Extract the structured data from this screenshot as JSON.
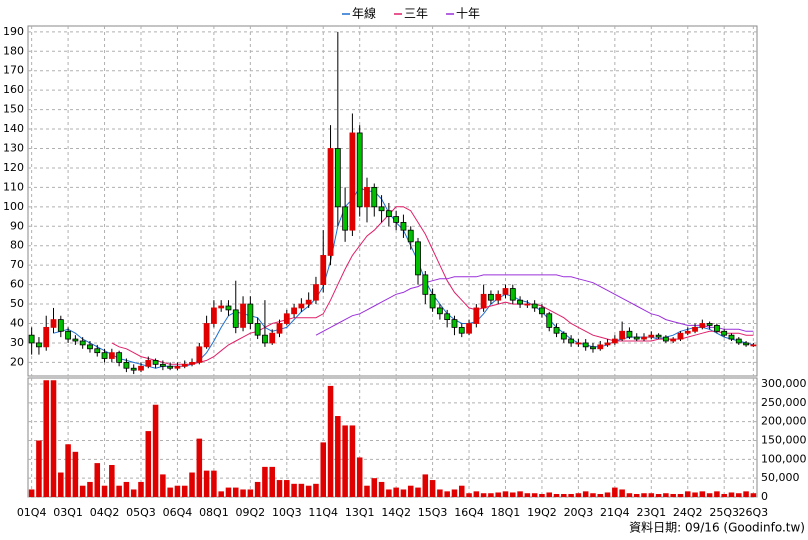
{
  "chart_data": {
    "type": "candlestick",
    "up_color": "#e00000",
    "down_color": "#00c000",
    "grid": true,
    "ylim": [
      13,
      193
    ],
    "yticks": [
      20,
      30,
      40,
      50,
      60,
      70,
      80,
      90,
      100,
      110,
      120,
      130,
      140,
      150,
      160,
      170,
      180,
      190
    ],
    "categories": [
      "01Q4",
      null,
      null,
      null,
      null,
      "03Q1",
      null,
      null,
      null,
      null,
      "04Q2",
      null,
      null,
      null,
      null,
      "05Q3",
      null,
      null,
      null,
      null,
      "06Q4",
      null,
      null,
      null,
      null,
      "08Q1",
      null,
      null,
      null,
      null,
      "09Q2",
      null,
      null,
      null,
      null,
      "10Q3",
      null,
      null,
      null,
      null,
      "11Q4",
      null,
      null,
      null,
      null,
      "13Q1",
      null,
      null,
      null,
      null,
      "14Q2",
      null,
      null,
      null,
      null,
      "15Q3",
      null,
      null,
      null,
      null,
      "16Q4",
      null,
      null,
      null,
      null,
      "18Q1",
      null,
      null,
      null,
      null,
      "19Q2",
      null,
      null,
      null,
      null,
      "20Q3",
      null,
      null,
      null,
      null,
      "21Q4",
      null,
      null,
      null,
      null,
      "23Q1",
      null,
      null,
      null,
      null,
      "24Q2",
      null,
      null,
      null,
      null,
      "25Q3",
      null,
      null,
      null,
      "26Q3"
    ],
    "open": [
      34,
      30,
      28,
      38,
      42,
      36,
      32,
      31,
      29,
      27,
      25,
      22,
      25,
      20,
      17,
      16,
      18,
      21,
      19,
      18,
      17,
      18,
      19,
      20,
      28,
      40,
      48,
      49,
      47,
      38,
      50,
      40,
      34,
      30,
      35,
      40,
      45,
      48,
      50,
      52,
      60,
      75,
      130,
      100,
      88,
      138,
      100,
      110,
      100,
      98,
      95,
      92,
      88,
      82,
      65,
      55,
      48,
      45,
      42,
      38,
      35,
      40,
      48,
      55,
      52,
      55,
      58,
      52,
      50,
      50,
      48,
      45,
      38,
      35,
      32,
      30,
      30,
      28,
      27,
      29,
      30,
      32,
      36,
      33,
      32,
      33,
      34,
      33,
      31,
      32,
      35,
      36,
      38,
      40,
      39,
      36,
      34,
      32,
      30,
      29
    ],
    "high": [
      38,
      33,
      44,
      48,
      44,
      38,
      34,
      33,
      31,
      29,
      27,
      27,
      26,
      22,
      19,
      20,
      23,
      22,
      21,
      20,
      20,
      21,
      22,
      30,
      44,
      52,
      52,
      52,
      62,
      54,
      54,
      43,
      52,
      37,
      42,
      47,
      50,
      53,
      56,
      64,
      88,
      142,
      190,
      110,
      148,
      142,
      115,
      112,
      106,
      102,
      98,
      96,
      90,
      84,
      67,
      58,
      50,
      47,
      44,
      40,
      42,
      50,
      60,
      57,
      57,
      60,
      60,
      54,
      52,
      52,
      50,
      46,
      40,
      36,
      34,
      32,
      32,
      30,
      31,
      32,
      34,
      41,
      38,
      35,
      35,
      36,
      35,
      34,
      33,
      36,
      38,
      40,
      42,
      41,
      40,
      37,
      35,
      33,
      31,
      30
    ],
    "low": [
      24,
      24,
      26,
      35,
      33,
      30,
      29,
      27,
      25,
      23,
      20,
      20,
      18,
      15,
      14,
      15,
      17,
      17,
      16,
      16,
      16,
      17,
      18,
      19,
      27,
      38,
      46,
      44,
      35,
      36,
      37,
      32,
      28,
      29,
      33,
      39,
      43,
      46,
      48,
      50,
      56,
      70,
      90,
      82,
      85,
      95,
      92,
      95,
      92,
      90,
      88,
      84,
      78,
      60,
      50,
      46,
      42,
      38,
      34,
      33,
      34,
      38,
      46,
      50,
      50,
      53,
      50,
      48,
      48,
      46,
      43,
      36,
      33,
      30,
      28,
      28,
      26,
      25,
      26,
      28,
      29,
      31,
      32,
      31,
      31,
      32,
      32,
      30,
      30,
      31,
      34,
      35,
      37,
      37,
      35,
      33,
      31,
      29,
      28,
      28
    ],
    "close": [
      30,
      28,
      38,
      42,
      36,
      32,
      31,
      29,
      27,
      25,
      22,
      25,
      20,
      17,
      16,
      18,
      21,
      19,
      18,
      17,
      18,
      19,
      20,
      28,
      40,
      48,
      49,
      47,
      38,
      50,
      40,
      34,
      30,
      35,
      40,
      45,
      48,
      50,
      52,
      60,
      75,
      130,
      100,
      88,
      138,
      100,
      110,
      100,
      98,
      95,
      92,
      88,
      82,
      65,
      55,
      48,
      45,
      42,
      38,
      35,
      40,
      48,
      55,
      52,
      55,
      58,
      52,
      50,
      50,
      48,
      45,
      38,
      35,
      32,
      30,
      30,
      28,
      27,
      29,
      30,
      32,
      36,
      33,
      32,
      33,
      34,
      33,
      31,
      32,
      35,
      36,
      38,
      40,
      39,
      36,
      34,
      32,
      30,
      29,
      29
    ],
    "series": [
      {
        "name": "年線",
        "color": "#1f6fd0",
        "values": [
          null,
          null,
          null,
          35,
          36,
          37,
          35,
          32,
          30,
          28,
          26,
          24,
          22,
          21,
          20,
          19,
          18,
          17,
          18,
          18,
          18,
          18,
          19,
          21,
          25,
          31,
          38,
          44,
          46,
          45,
          44,
          43,
          38,
          36,
          37,
          38,
          42,
          46,
          49,
          53,
          59,
          72,
          90,
          100,
          104,
          110,
          108,
          108,
          104,
          97,
          92,
          88,
          80,
          72,
          62,
          55,
          50,
          45,
          42,
          40,
          40,
          41,
          45,
          50,
          53,
          55,
          54,
          52,
          51,
          49,
          46,
          42,
          38,
          35,
          32,
          30,
          29,
          28,
          28,
          29,
          31,
          32,
          33,
          33,
          33,
          33,
          32,
          33,
          34,
          36,
          37,
          38,
          38,
          37,
          35,
          33,
          32,
          31,
          30,
          29
        ]
      },
      {
        "name": "三年",
        "color": "#e0206a",
        "values": [
          null,
          null,
          null,
          null,
          null,
          null,
          null,
          null,
          null,
          null,
          null,
          30,
          28,
          27,
          25,
          23,
          22,
          21,
          20,
          19,
          19,
          19,
          19,
          20,
          21,
          23,
          26,
          29,
          31,
          33,
          35,
          36,
          38,
          40,
          41,
          42,
          43,
          43,
          43,
          43,
          45,
          52,
          60,
          68,
          75,
          80,
          85,
          88,
          92,
          96,
          100,
          100,
          98,
          92,
          86,
          78,
          70,
          62,
          56,
          52,
          48,
          47,
          48,
          49,
          50,
          51,
          50,
          50,
          50,
          50,
          49,
          47,
          45,
          43,
          40,
          38,
          36,
          34,
          33,
          32,
          31,
          31,
          31,
          31,
          31,
          31,
          32,
          32,
          32,
          32,
          33,
          34,
          35,
          36,
          36,
          35,
          35,
          35,
          34,
          34
        ]
      },
      {
        "name": "十年",
        "color": "#9b30d9",
        "values": [
          null,
          null,
          null,
          null,
          null,
          null,
          null,
          null,
          null,
          null,
          null,
          null,
          null,
          null,
          null,
          null,
          null,
          null,
          null,
          null,
          null,
          null,
          null,
          null,
          null,
          null,
          null,
          null,
          null,
          null,
          null,
          null,
          null,
          null,
          null,
          null,
          null,
          null,
          null,
          34,
          36,
          38,
          40,
          42,
          44,
          45,
          47,
          49,
          51,
          53,
          55,
          56,
          58,
          59,
          61,
          62,
          63,
          63,
          64,
          64,
          64,
          64,
          65,
          65,
          65,
          65,
          65,
          65,
          65,
          65,
          65,
          65,
          65,
          64,
          64,
          63,
          62,
          61,
          59,
          57,
          55,
          53,
          51,
          49,
          47,
          45,
          44,
          42,
          41,
          40,
          39,
          39,
          39,
          38,
          38,
          37,
          37,
          37,
          36,
          36
        ]
      }
    ],
    "volume": {
      "color": "#e00000",
      "ylim": [
        0,
        316000
      ],
      "yticks": [
        0,
        {
          "value": 50000,
          "label": "50,000"
        },
        {
          "value": 100000,
          "label": "100,000"
        },
        {
          "value": 150000,
          "label": "150,000"
        },
        {
          "value": 200000,
          "label": "200,000"
        },
        {
          "value": 250000,
          "label": "250,000"
        },
        {
          "value": 300000,
          "label": "300,000"
        }
      ],
      "values": [
        20000,
        150000,
        310000,
        310000,
        65000,
        140000,
        120000,
        30000,
        40000,
        90000,
        30000,
        85000,
        30000,
        40000,
        20000,
        40000,
        175000,
        245000,
        60000,
        25000,
        30000,
        30000,
        65000,
        155000,
        70000,
        70000,
        15000,
        25000,
        25000,
        20000,
        20000,
        40000,
        80000,
        80000,
        45000,
        45000,
        35000,
        35000,
        30000,
        35000,
        145000,
        295000,
        215000,
        190000,
        190000,
        105000,
        30000,
        50000,
        40000,
        20000,
        25000,
        20000,
        30000,
        25000,
        60000,
        45000,
        20000,
        15000,
        20000,
        30000,
        10000,
        15000,
        10000,
        10000,
        12000,
        15000,
        12000,
        15000,
        10000,
        10000,
        8000,
        12000,
        8000,
        8000,
        8000,
        10000,
        15000,
        10000,
        8000,
        12000,
        25000,
        20000,
        10000,
        8000,
        10000,
        10000,
        8000,
        10000,
        8000,
        8000,
        15000,
        12000,
        15000,
        10000,
        15000,
        8000,
        12000,
        10000,
        15000,
        10000
      ]
    },
    "source_note": "資料日期: 09/16 (Goodinfo.tw)"
  }
}
